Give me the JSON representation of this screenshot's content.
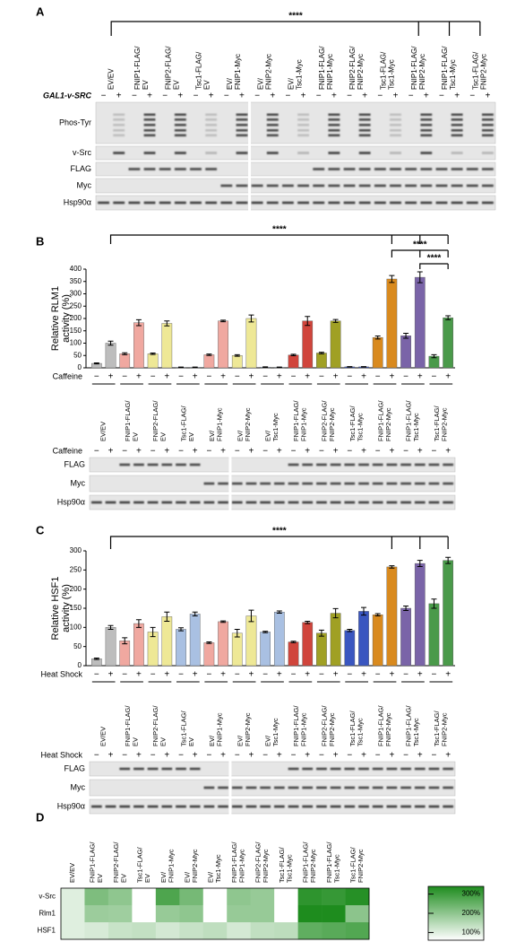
{
  "panels": [
    "A",
    "B",
    "C",
    "D"
  ],
  "label_colors": [
    [
      "#000000"
    ],
    [
      "#d42c2c",
      "#000000"
    ],
    [
      "#a5a21a",
      "#000000"
    ],
    [
      "#3f5fc4",
      "#000000"
    ],
    [
      "#000000",
      "#d42c2c"
    ],
    [
      "#000000",
      "#a5a21a"
    ],
    [
      "#000000",
      "#3f5fc4"
    ],
    [
      "#d42c2c",
      "#d42c2c"
    ],
    [
      "#a5a21a",
      "#a5a21a"
    ],
    [
      "#3f5fc4",
      "#3f5fc4"
    ],
    [
      "#d42c2c",
      "#a5a21a"
    ],
    [
      "#d42c2c",
      "#3f5fc4"
    ],
    [
      "#3f5fc4",
      "#a5a21a"
    ]
  ],
  "blot_a": {
    "significance": "****",
    "treatment": "GAL1-v-SRC",
    "lanes": [
      "−",
      "+"
    ],
    "rows": [
      "Phos-Tyr",
      "v-Src",
      "FLAG",
      "Myc",
      "Hsp90α"
    ],
    "categories": [
      [
        "EV/EV"
      ],
      [
        "FNIP1-FLAG/",
        "EV"
      ],
      [
        "FNIP2-FLAG/",
        "EV"
      ],
      [
        "Tsc1-FLAG/",
        "EV"
      ],
      [
        "EV/",
        "FNIP1-Myc"
      ],
      [
        "EV/",
        "FNIP2-Myc"
      ],
      [
        "EV/",
        "Tsc1-Myc"
      ],
      [
        "FNIP1-FLAG/",
        "FNIP1-Myc"
      ],
      [
        "FNIP2-FLAG/",
        "FNIP2-Myc"
      ],
      [
        "Tsc1-FLAG/",
        "Tsc1-Myc"
      ],
      [
        "FNIP1-FLAG/",
        "FNIP2-Myc"
      ],
      [
        "FNIP1-FLAG/",
        "Tsc1-Myc"
      ],
      [
        "Tsc1-FLAG/",
        "FNIP2-Myc"
      ]
    ]
  },
  "blot_b": {
    "rows": [
      "FLAG",
      "Myc",
      "Hsp90α"
    ]
  },
  "blot_c": {
    "rows": [
      "FLAG",
      "Myc",
      "Hsp90α"
    ]
  },
  "chart_data": [
    {
      "type": "bar",
      "ylabel": [
        "Relative RLM1",
        "activity (%)"
      ],
      "xlabel": "Caffeine",
      "significance": [
        "****",
        "****",
        "****"
      ],
      "categories": [
        [
          "EV/EV"
        ],
        [
          "FNIP1-FLAG/",
          "EV"
        ],
        [
          "FNIP2-FLAG/",
          "EV"
        ],
        [
          "Tsc1-FLAG/",
          "EV"
        ],
        [
          "EV/",
          "FNIP1-Myc"
        ],
        [
          "EV/",
          "FNIP2-Myc"
        ],
        [
          "EV/",
          "Tsc1-Myc"
        ],
        [
          "FNIP1-FLAG/",
          "FNIP1-Myc"
        ],
        [
          "FNIP2-FLAG/",
          "FNIP2-Myc"
        ],
        [
          "Tsc1-FLAG/",
          "Tsc1-Myc"
        ],
        [
          "FNIP1-FLAG/",
          "FNIP2-Myc"
        ],
        [
          "FNIP1-FLAG/",
          "Tsc1-Myc"
        ],
        [
          "Tsc1-FLAG/",
          "FNIP2-Myc"
        ]
      ],
      "colors": [
        "#bdbdbd",
        "#f0a8a0",
        "#eee896",
        "#a9c0e2",
        "#f0a8a0",
        "#eee896",
        "#a9c0e2",
        "#d0453c",
        "#a0a024",
        "#3a56c0",
        "#d98a1e",
        "#7a64a8",
        "#4a9a4a"
      ],
      "series": [
        {
          "name": "−",
          "values": [
            18,
            57,
            57,
            2,
            53,
            50,
            3,
            52,
            60,
            4,
            123,
            130,
            47
          ],
          "errors": [
            2,
            4,
            3,
            1,
            3,
            3,
            1,
            3,
            3,
            1,
            6,
            10,
            6
          ]
        },
        {
          "name": "+",
          "values": [
            100,
            183,
            180,
            2,
            190,
            200,
            2,
            190,
            190,
            4,
            360,
            367,
            203
          ],
          "errors": [
            8,
            12,
            10,
            1,
            3,
            14,
            1,
            18,
            6,
            1,
            14,
            22,
            8
          ]
        }
      ],
      "ylim": [
        0,
        400
      ],
      "yticks": [
        0,
        50,
        100,
        150,
        200,
        250,
        300,
        350,
        400
      ]
    },
    {
      "type": "bar",
      "ylabel": [
        "Relative HSF1",
        "activity (%)"
      ],
      "xlabel": "Heat Shock",
      "significance": [
        "****"
      ],
      "categories": [
        [
          "EV/EV"
        ],
        [
          "FNIP1-FLAG/",
          "EV"
        ],
        [
          "FNIP2-FLAG/",
          "EV"
        ],
        [
          "Tsc1-FLAG/",
          "EV"
        ],
        [
          "EV/",
          "FNIP1-Myc"
        ],
        [
          "EV/",
          "FNIP2-Myc"
        ],
        [
          "EV/",
          "Tsc1-Myc"
        ],
        [
          "FNIP1-FLAG/",
          "FNIP1-Myc"
        ],
        [
          "FNIP2-FLAG/",
          "FNIP2-Myc"
        ],
        [
          "Tsc1-FLAG/",
          "Tsc1-Myc"
        ],
        [
          "FNIP1-FLAG/",
          "FNIP2-Myc"
        ],
        [
          "FNIP1-FLAG/",
          "Tsc1-Myc"
        ],
        [
          "Tsc1-FLAG/",
          "FNIP2-Myc"
        ]
      ],
      "colors": [
        "#bdbdbd",
        "#f0a8a0",
        "#eee896",
        "#a9c0e2",
        "#f0a8a0",
        "#eee896",
        "#a9c0e2",
        "#d0453c",
        "#a0a024",
        "#3a56c0",
        "#d98a1e",
        "#7a64a8",
        "#4a9a4a"
      ],
      "series": [
        {
          "name": "−",
          "values": [
            18,
            65,
            88,
            95,
            60,
            85,
            88,
            62,
            85,
            92,
            133,
            150,
            162
          ],
          "errors": [
            2,
            8,
            12,
            4,
            2,
            10,
            2,
            2,
            8,
            3,
            3,
            6,
            12
          ]
        },
        {
          "name": "+",
          "values": [
            100,
            110,
            128,
            135,
            115,
            130,
            140,
            113,
            137,
            142,
            258,
            267,
            275
          ],
          "errors": [
            5,
            10,
            12,
            5,
            2,
            15,
            3,
            3,
            12,
            10,
            3,
            8,
            8
          ]
        }
      ],
      "ylim": [
        0,
        300
      ],
      "yticks": [
        0,
        50,
        100,
        150,
        200,
        250,
        300
      ]
    },
    {
      "type": "heatmap",
      "categories": [
        [
          "EV/EV"
        ],
        [
          "FNIP1-FLAG/",
          "EV"
        ],
        [
          "FNIP2-FLAG/",
          "EV"
        ],
        [
          "Tsc1-FLAG/",
          "EV"
        ],
        [
          "EV/",
          "FNIP1-Myc"
        ],
        [
          "EV/",
          "FNIP2-Myc"
        ],
        [
          "EV/",
          "Tsc1-Myc"
        ],
        [
          "FNIP1-FLAG/",
          "FNIP1-Myc"
        ],
        [
          "FNIP2-FLAG/",
          "FNIP2-Myc"
        ],
        [
          "Tsc1-FLAG/",
          "Tsc1-Myc"
        ],
        [
          "FNIP1-FLAG/",
          "FNIP2-Myc"
        ],
        [
          "FNIP1-FLAG/",
          "Tsc1-Myc"
        ],
        [
          "Tsc1-FLAG/",
          "FNIP2-Myc"
        ]
      ],
      "rows": [
        "v-Src",
        "Rlm1",
        "HSF1"
      ],
      "values": [
        [
          100,
          220,
          200,
          10,
          280,
          230,
          10,
          200,
          190,
          15,
          320,
          310,
          330
        ],
        [
          100,
          183,
          180,
          2,
          190,
          200,
          2,
          190,
          190,
          4,
          360,
          367,
          203
        ],
        [
          100,
          110,
          128,
          135,
          115,
          130,
          140,
          113,
          137,
          142,
          258,
          267,
          275
        ]
      ],
      "zlim": [
        60,
        340
      ],
      "colors": [
        "#ffffff",
        "#1e8c1e"
      ],
      "zticks": [
        {
          "value": 300,
          "label": "300%"
        },
        {
          "value": 200,
          "label": "200%"
        },
        {
          "value": 100,
          "label": "100%"
        }
      ]
    }
  ]
}
